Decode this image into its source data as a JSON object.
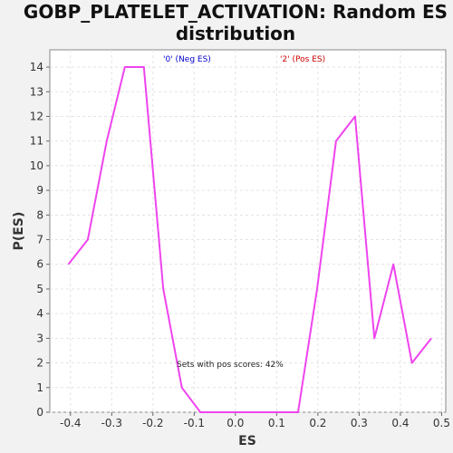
{
  "chart_data": {
    "type": "line",
    "title_lines": [
      "GOBP_PLATELET_ACTIVATION: Random ES",
      "distribution"
    ],
    "xlabel": "ES",
    "ylabel": "P(ES)",
    "xlim": [
      -0.45,
      0.51
    ],
    "ylim": [
      0,
      14.7
    ],
    "x_ticks": [
      -0.4,
      -0.3,
      -0.2,
      -0.1,
      0.0,
      0.1,
      0.2,
      0.3,
      0.4,
      0.5
    ],
    "x_tick_labels": [
      "-0.4",
      "-0.3",
      "-0.2",
      "-0.1",
      "0.0",
      "0.1",
      "0.2",
      "0.3",
      "0.4",
      "0.5"
    ],
    "y_ticks": [
      0,
      1,
      2,
      3,
      4,
      5,
      6,
      7,
      8,
      9,
      10,
      11,
      12,
      13,
      14
    ],
    "y_tick_labels": [
      "0",
      "1",
      "2",
      "3",
      "4",
      "5",
      "6",
      "7",
      "8",
      "9",
      "10",
      "11",
      "12",
      "13",
      "14"
    ],
    "grid": true,
    "legend": [
      {
        "label": "'0' (Neg ES)",
        "color": "#0000cc"
      },
      {
        "label": "'2' (Pos ES)",
        "color": "#cc0000"
      }
    ],
    "annotation": "Sets with pos scores: 42%",
    "series": [
      {
        "color": "#ee44ee",
        "x": [
          -0.405,
          -0.358,
          -0.312,
          -0.268,
          -0.222,
          -0.175,
          -0.13,
          -0.085,
          -0.04,
          0.0,
          0.058,
          0.105,
          0.152,
          0.198,
          0.244,
          0.29,
          0.337,
          0.383,
          0.428,
          0.475
        ],
        "y": [
          6,
          7,
          11,
          14,
          14,
          5,
          1,
          0,
          0,
          0,
          0,
          0,
          0,
          5,
          11,
          12,
          3,
          6,
          2,
          3
        ]
      }
    ]
  }
}
